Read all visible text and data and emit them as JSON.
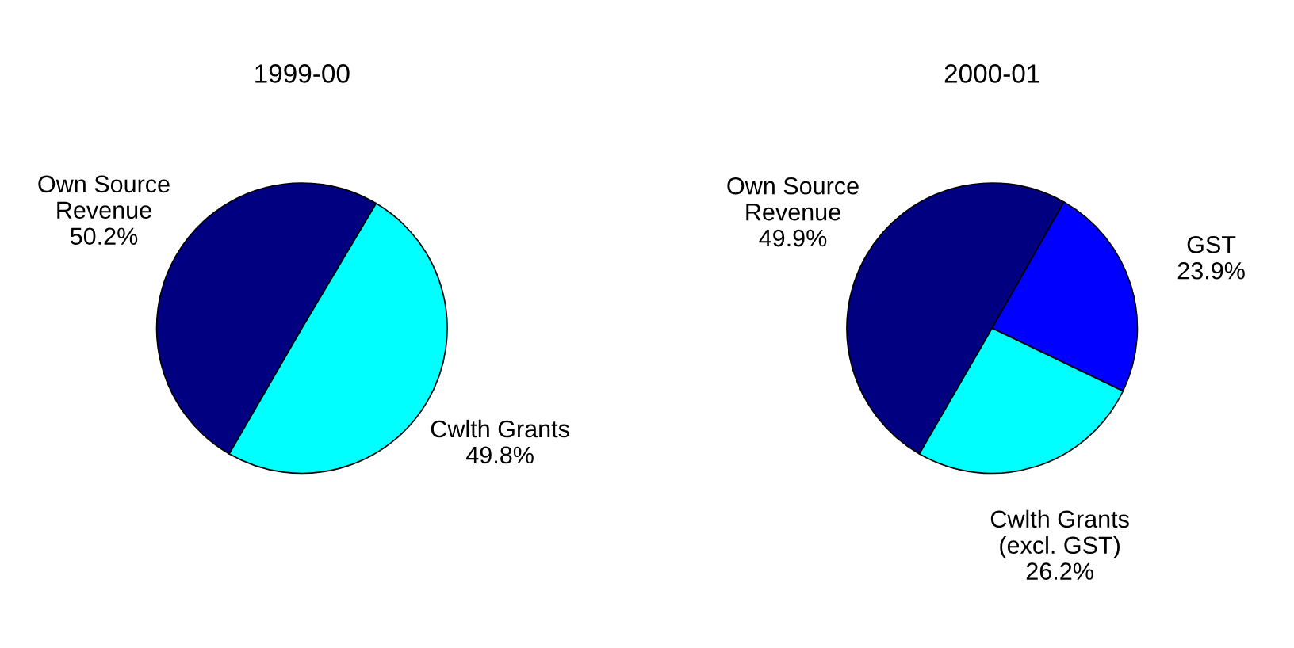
{
  "chart_data": [
    {
      "type": "pie",
      "title": "1999-00",
      "categories": [
        "Own Source\nRevenue",
        "Cwlth Grants"
      ],
      "values": [
        50.2,
        49.8
      ],
      "value_labels": [
        "50.2%",
        "49.8%"
      ],
      "colors": [
        "#000080",
        "#00ffff"
      ]
    },
    {
      "type": "pie",
      "title": "2000-01",
      "categories": [
        "Own Source\nRevenue",
        "GST",
        "Cwlth Grants\n(excl. GST)"
      ],
      "values": [
        49.9,
        23.9,
        26.2
      ],
      "value_labels": [
        "49.9%",
        "23.9%",
        "26.2%"
      ],
      "colors": [
        "#000080",
        "#0000ff",
        "#00ffff"
      ]
    }
  ]
}
